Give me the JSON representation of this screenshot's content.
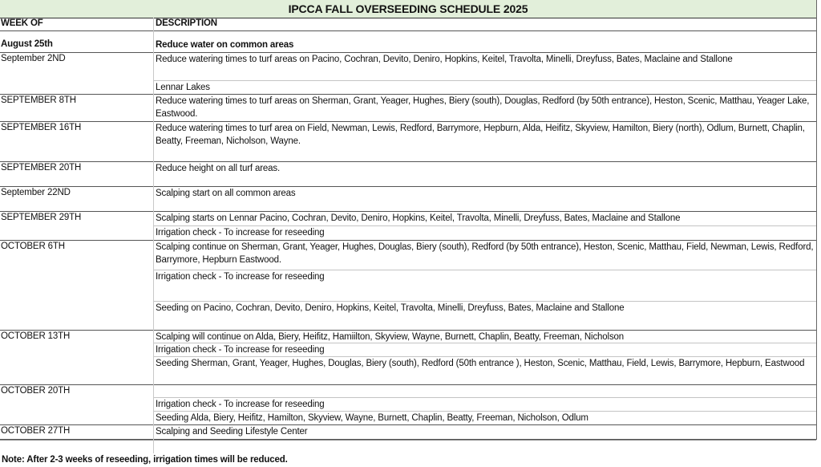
{
  "title": "IPCCA FALL OVERSEEDING SCHEDULE 2025",
  "headers": {
    "week": "WEEK OF",
    "description": "DESCRIPTION"
  },
  "rows": [
    {
      "week": "August 25th",
      "bold": true,
      "items": [
        "Reduce water on common areas"
      ]
    },
    {
      "week": "September 2ND",
      "items": [
        "Reduce watering times to turf areas on Pacino, Cochran, Devito, Deniro, Hopkins, Keitel, Travolta, Minelli, Dreyfuss, Bates, Maclaine and Stallone",
        "Lennar Lakes"
      ]
    },
    {
      "week": "SEPTEMBER 8TH",
      "items": [
        "Reduce watering times to turf areas on Sherman, Grant, Yeager, Hughes, Biery (south), Douglas, Redford (by 50th entrance), Heston, Scenic, Matthau, Yeager Lake, Eastwood."
      ]
    },
    {
      "week": "SEPTEMBER 16TH",
      "items": [
        "Reduce watering times to turf area on Field, Newman, Lewis, Redford, Barrymore, Hepburn, Alda, Heifitz, Skyview, Hamilton, Biery (north), Odlum, Burnett, Chaplin, Beatty, Freeman, Nicholson, Wayne."
      ]
    },
    {
      "week": "SEPTEMBER 20TH",
      "items": [
        "Reduce height on all turf areas."
      ]
    },
    {
      "week": "September 22ND",
      "items": [
        "Scalping start on all common areas"
      ]
    },
    {
      "week": "SEPTEMBER 29TH",
      "items": [
        "Scalping starts on Lennar  Pacino, Cochran, Devito, Deniro, Hopkins, Keitel, Travolta, Minelli, Dreyfuss, Bates, Maclaine and Stallone",
        "Irrigation check - To increase for reseeding"
      ]
    },
    {
      "week": "OCTOBER 6TH",
      "items": [
        "Scalping continue on Sherman, Grant, Yeager, Hughes, Douglas, Biery (south), Redford (by 50th entrance), Heston, Scenic, Matthau, Field, Newman, Lewis, Redford, Barrymore, Hepburn Eastwood.",
        "Irrigation check - To increase for reseeding",
        "Seeding on Pacino, Cochran, Devito, Deniro, Hopkins, Keitel, Travolta, Minelli, Dreyfuss, Bates, Maclaine and Stallone"
      ]
    },
    {
      "week": "OCTOBER 13TH",
      "items": [
        "Scalping will continue on Alda, Biery, Heifitz, Hamiilton, Skyview, Wayne, Burnett, Chaplin, Beatty, Freeman, Nicholson",
        "Irrigation check - To increase for reseeding",
        "Seeding Sherman, Grant, Yeager, Hughes, Douglas, Biery (south), Redford (50th entrance ), Heston, Scenic, Matthau, Field, Lewis, Barrymore, Hepburn, Eastwood"
      ]
    },
    {
      "week": "OCTOBER 20TH",
      "items": [
        "",
        "Irrigation check - To increase for reseeding",
        "Seeding Alda, Biery, Heifitz, Hamilton, Skyview, Wayne, Burnett, Chaplin, Beatty, Freeman, Nicholson, Odlum"
      ]
    },
    {
      "week": "OCTOBER 27TH",
      "items": [
        "Scalping and Seeding Lifestyle Center"
      ]
    }
  ],
  "note": "Note: After 2-3 weeks of reseeding, irrigation times will be reduced.",
  "colors": {
    "title_band": "#e2efda"
  }
}
